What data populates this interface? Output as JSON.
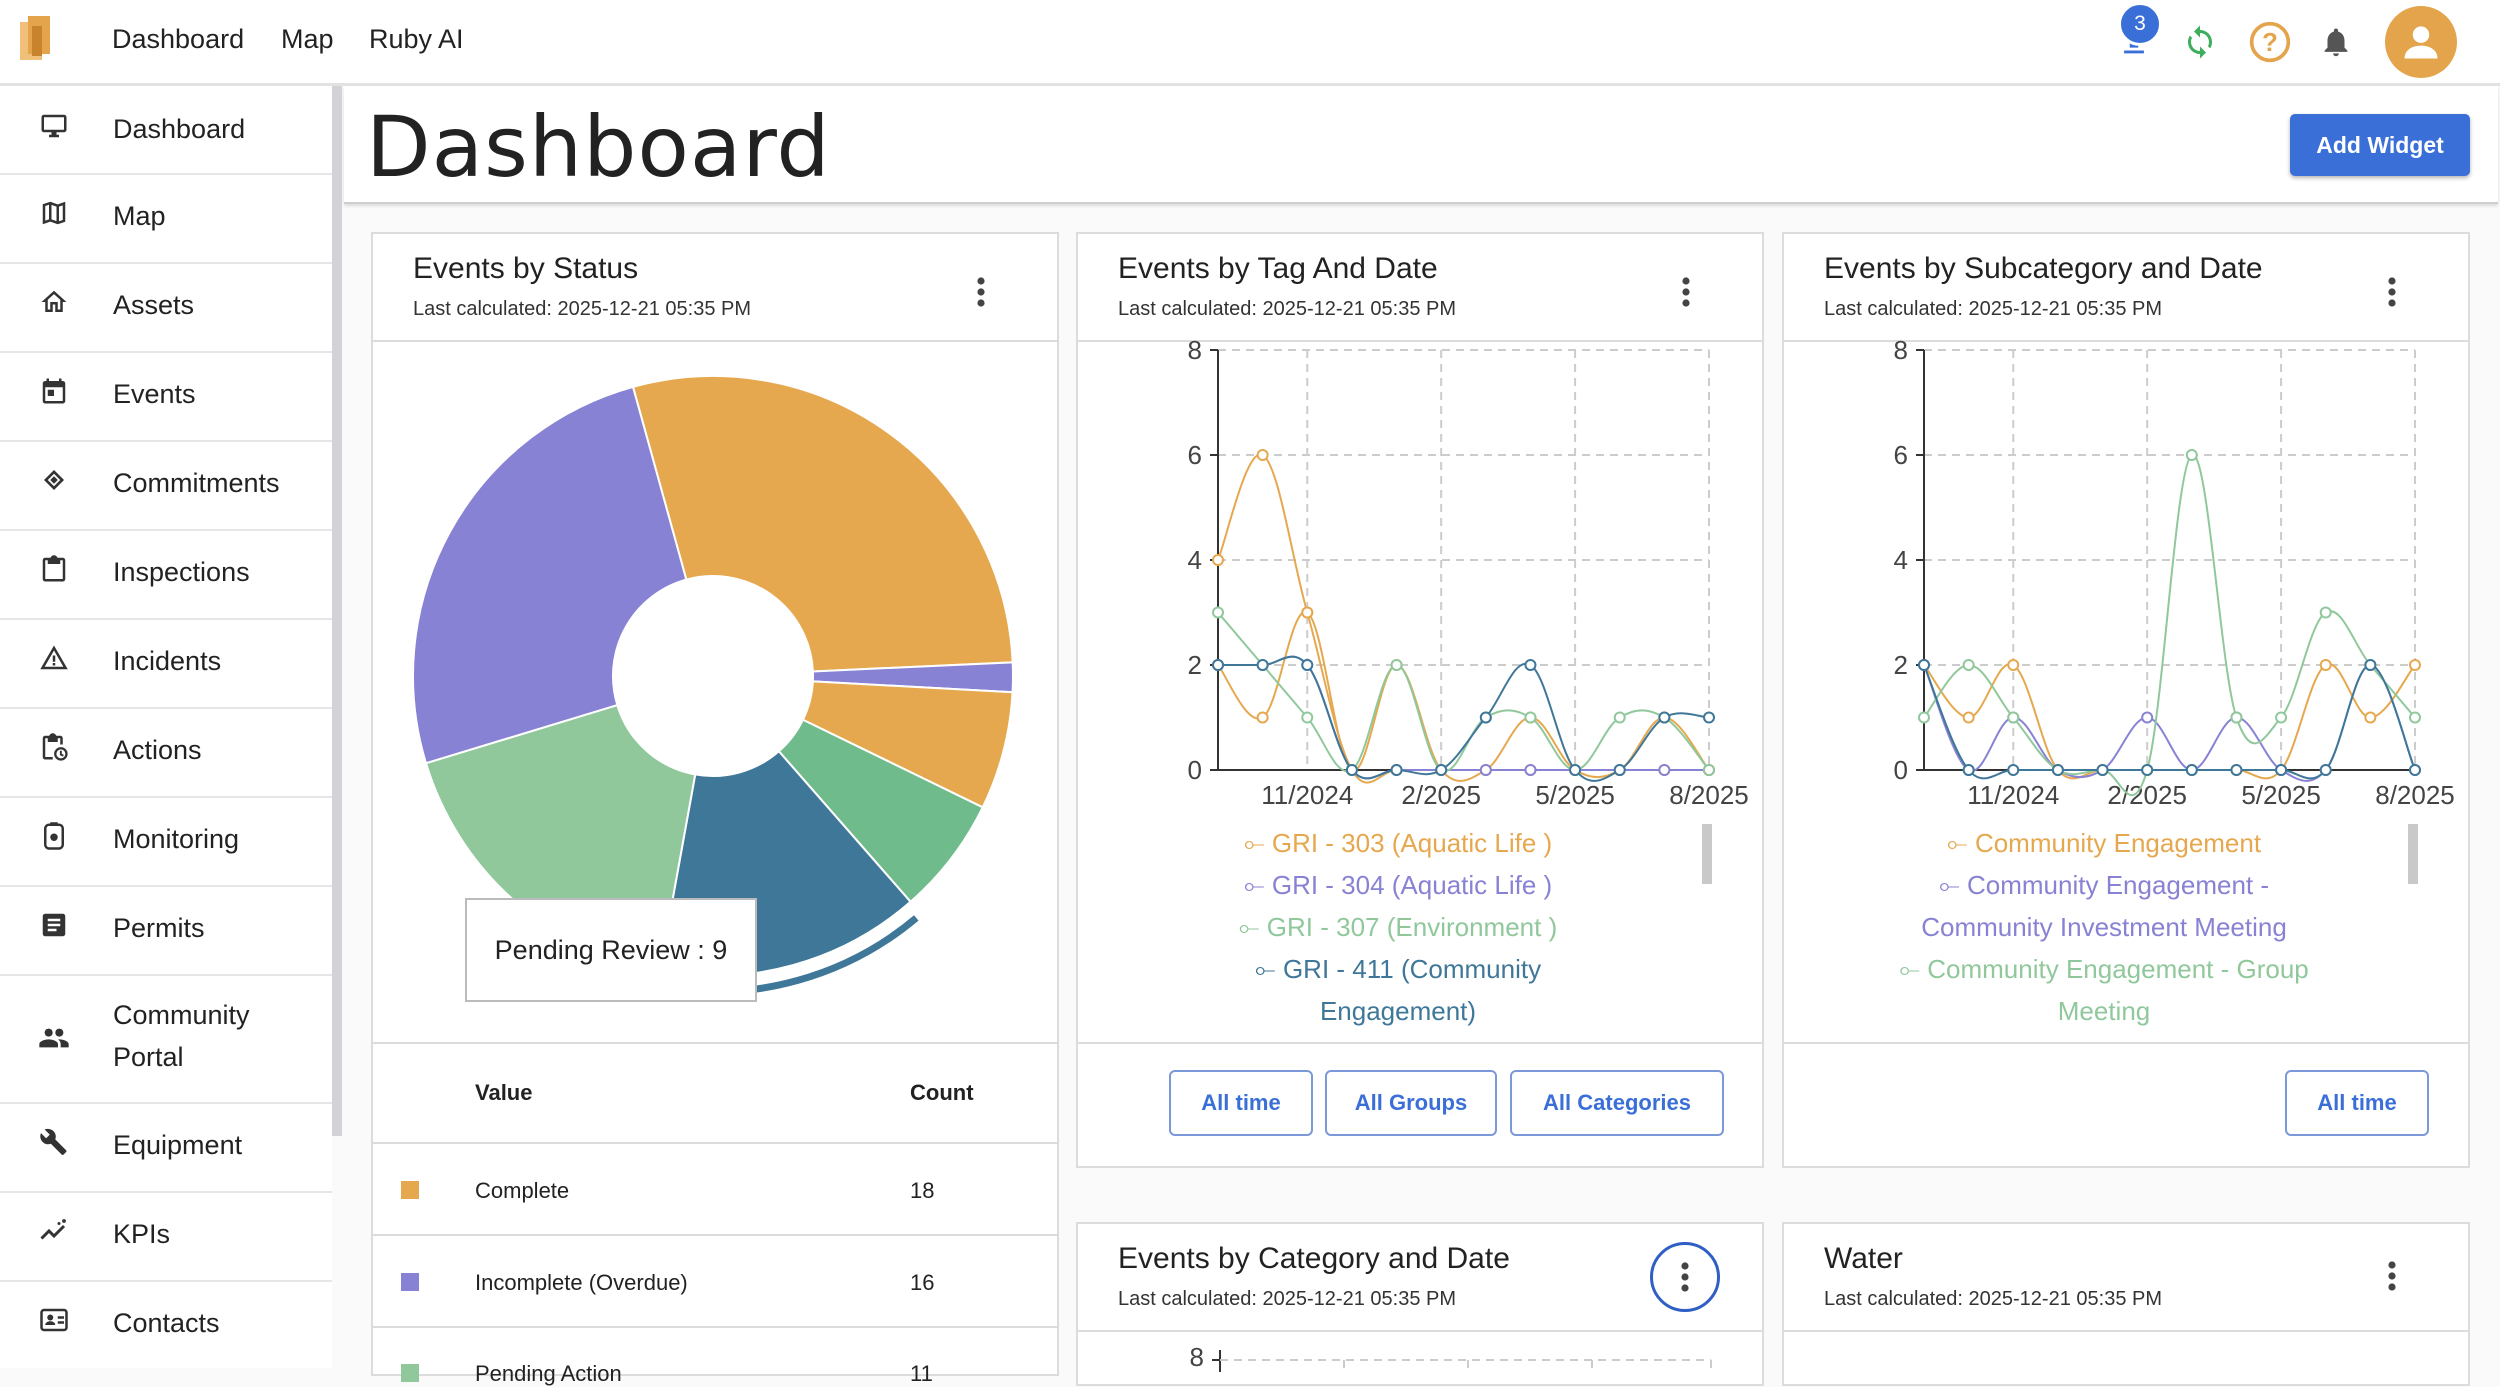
{
  "topbar": {
    "nav": [
      "Dashboard",
      "Map",
      "Ruby AI"
    ],
    "upload_badge": "3",
    "colors": {
      "accent": "#3b6fd8",
      "sync": "#3cae5c",
      "help": "#e3a44b",
      "avatar": "#e3a44b"
    }
  },
  "sidebar": {
    "items": [
      {
        "label": "Dashboard",
        "icon": "monitor-icon"
      },
      {
        "label": "Map",
        "icon": "map-icon"
      },
      {
        "label": "Assets",
        "icon": "home-icon"
      },
      {
        "label": "Events",
        "icon": "calendar-icon"
      },
      {
        "label": "Commitments",
        "icon": "handshake-icon"
      },
      {
        "label": "Inspections",
        "icon": "clipboard-icon"
      },
      {
        "label": "Incidents",
        "icon": "warning-icon"
      },
      {
        "label": "Actions",
        "icon": "clipboard-clock-icon"
      },
      {
        "label": "Monitoring",
        "icon": "monitoring-icon"
      },
      {
        "label": "Permits",
        "icon": "document-icon"
      },
      {
        "label": "Community\nPortal",
        "icon": "people-icon"
      },
      {
        "label": "Equipment",
        "icon": "tools-icon"
      },
      {
        "label": "KPIs",
        "icon": "trend-icon"
      },
      {
        "label": "Contacts",
        "icon": "contacts-icon"
      }
    ]
  },
  "header": {
    "title": "Dashboard",
    "add_widget": "Add Widget"
  },
  "widgets": {
    "status": {
      "title": "Events by Status",
      "subtitle": "Last calculated: 2025-12-21 05:35 PM",
      "tooltip": "Pending Review : 9",
      "table": {
        "headers": [
          "Value",
          "Count"
        ],
        "rows": [
          {
            "value": "Complete",
            "count": "18",
            "color": "#e6a84e"
          },
          {
            "value": "Incomplete (Overdue)",
            "count": "16",
            "color": "#8882d4"
          },
          {
            "value": "Pending Action",
            "count": "11",
            "color": "#90c89c"
          }
        ]
      }
    },
    "tag_date": {
      "title": "Events by Tag And Date",
      "subtitle": "Last calculated: 2025-12-21 05:35 PM",
      "legend": [
        "GRI - 303 (Aquatic Life )",
        "GRI - 304 (Aquatic Life )",
        "GRI - 307 (Environment )",
        "GRI - 411 (Community",
        "Engagement)"
      ],
      "buttons": [
        "All time",
        "All Groups",
        "All Categories"
      ]
    },
    "subcat_date": {
      "title": "Events by Subcategory and Date",
      "subtitle": "Last calculated: 2025-12-21 05:35 PM",
      "legend": [
        "Community Engagement",
        "Community Engagement -",
        "Community Investment Meeting",
        "Community Engagement - Group",
        "Meeting"
      ],
      "buttons": [
        "All time"
      ]
    },
    "cat_date": {
      "title": "Events by Category and Date",
      "subtitle": "Last calculated: 2025-12-21 05:35 PM",
      "ytick_top": "8"
    },
    "water": {
      "title": "Water",
      "subtitle": "Last calculated: 2025-12-21 05:35 PM"
    }
  },
  "chart_data": [
    {
      "type": "pie",
      "title": "Events by Status",
      "slices": [
        {
          "name": "Complete",
          "value": 18,
          "color": "#e6a84e"
        },
        {
          "name": "(unlabeled)",
          "value": 1,
          "color": "#8882d4"
        },
        {
          "name": "(unlabeled)",
          "value": 4,
          "color": "#e6a84e"
        },
        {
          "name": "(unlabeled)",
          "value": 4,
          "color": "#6fbb8c"
        },
        {
          "name": "Pending Review",
          "value": 9,
          "color": "#3f7799"
        },
        {
          "name": "Pending Action",
          "value": 11,
          "color": "#90c89c"
        },
        {
          "name": "Incomplete (Overdue)",
          "value": 16,
          "color": "#8882d4"
        }
      ]
    },
    {
      "type": "line",
      "title": "Events by Tag And Date",
      "x": [
        0,
        1,
        2,
        3,
        4,
        5,
        6,
        7,
        8,
        9,
        10,
        11
      ],
      "xticks": [
        "11/2024",
        "2/2025",
        "5/2025",
        "8/2025"
      ],
      "xtick_positions": [
        2,
        5,
        8,
        11
      ],
      "ylim": [
        0,
        8
      ],
      "yticks": [
        0,
        2,
        4,
        6,
        8
      ],
      "series": [
        {
          "name": "GRI - 303 (Aquatic Life )",
          "color": "#e6a84e",
          "values": [
            4,
            6,
            3,
            0,
            0,
            0,
            0,
            0,
            0,
            0,
            0,
            0
          ]
        },
        {
          "name": "GRI - 303 (Aquatic Life )",
          "color": "#e6a84e",
          "values": [
            2,
            1,
            3,
            0,
            2,
            0,
            0,
            1,
            0,
            0,
            1,
            0
          ]
        },
        {
          "name": "GRI - 304 (Aquatic Life )",
          "color": "#8882d4",
          "values": [
            2,
            2,
            2,
            0,
            0,
            0,
            0,
            0,
            0,
            0,
            0,
            0
          ]
        },
        {
          "name": "GRI - 307 (Environment )",
          "color": "#90c89c",
          "values": [
            3,
            2,
            1,
            0,
            2,
            0,
            1,
            1,
            0,
            1,
            1,
            0
          ]
        },
        {
          "name": "GRI - 411 (Community Engagement)",
          "color": "#3f7799",
          "values": [
            2,
            2,
            2,
            0,
            0,
            0,
            1,
            2,
            0,
            0,
            1,
            1
          ]
        }
      ]
    },
    {
      "type": "line",
      "title": "Events by Subcategory and Date",
      "x": [
        0,
        1,
        2,
        3,
        4,
        5,
        6,
        7,
        8,
        9,
        10,
        11
      ],
      "xticks": [
        "11/2024",
        "2/2025",
        "5/2025",
        "8/2025"
      ],
      "xtick_positions": [
        2,
        5,
        8,
        11
      ],
      "ylim": [
        0,
        8
      ],
      "yticks": [
        0,
        2,
        4,
        6,
        8
      ],
      "series": [
        {
          "name": "Community Engagement",
          "color": "#e6a84e",
          "values": [
            2,
            1,
            2,
            0,
            0,
            0,
            0,
            0,
            0,
            2,
            1,
            2
          ]
        },
        {
          "name": "Community Engagement - Community Investment Meeting",
          "color": "#8882d4",
          "values": [
            2,
            0,
            1,
            0,
            0,
            1,
            0,
            1,
            0,
            0,
            2,
            0
          ]
        },
        {
          "name": "Community Engagement - Group Meeting",
          "color": "#90c89c",
          "values": [
            1,
            2,
            1,
            0,
            0,
            0,
            6,
            1,
            1,
            3,
            2,
            1
          ]
        },
        {
          "name": "(unlabeled)",
          "color": "#3f7799",
          "values": [
            2,
            0,
            0,
            0,
            0,
            0,
            0,
            0,
            0,
            0,
            2,
            0
          ]
        }
      ]
    }
  ]
}
